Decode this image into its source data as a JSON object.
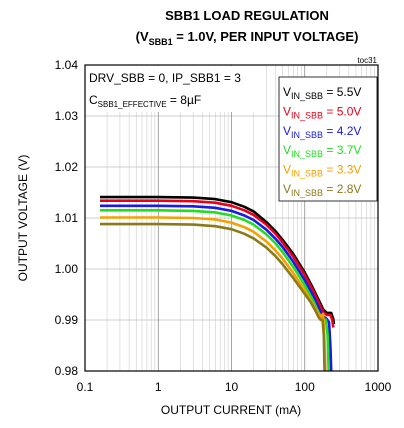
{
  "chart_data": {
    "type": "line",
    "title_main": "SBB1 LOAD REGULATION",
    "title_sub_v": "V",
    "title_sub_sub": "SBB1",
    "title_sub_rest": " = 1.0V, PER INPUT VOLTAGE)",
    "tag": "toc31",
    "xlabel": "OUTPUT CURRENT (mA)",
    "ylabel": "OUTPUT VOLTAGE (V)",
    "x_scale": "log",
    "xlim": [
      0.1,
      1000
    ],
    "ylim": [
      0.98,
      1.04
    ],
    "x_ticks": [
      "0.1",
      "1",
      "10",
      "100",
      "1000"
    ],
    "y_ticks": [
      "0.98",
      "0.99",
      "1.00",
      "1.01",
      "1.02",
      "1.03",
      "1.04"
    ],
    "grid": true,
    "annotations": {
      "line1": "DRV_SBB = 0, IP_SBB1 = 3",
      "line2_c": "C",
      "line2_sub": "SBB1_EFFECTIVE",
      "line2_rest": " = 8µF"
    },
    "series": [
      {
        "name": "5.5V",
        "legend_v": "V",
        "legend_sub": "IN_SBB",
        "legend_rest": " = 5.5V",
        "color": "#000000",
        "points": [
          [
            0.16,
            1.0141
          ],
          [
            0.3,
            1.0141
          ],
          [
            1,
            1.0141
          ],
          [
            3,
            1.014
          ],
          [
            6,
            1.0137
          ],
          [
            10,
            1.0131
          ],
          [
            15,
            1.0122
          ],
          [
            20,
            1.0113
          ],
          [
            30,
            1.0092
          ],
          [
            40,
            1.0074
          ],
          [
            50,
            1.0057
          ],
          [
            70,
            1.0029
          ],
          [
            100,
            0.9993
          ],
          [
            130,
            0.9962
          ],
          [
            160,
            0.9935
          ],
          [
            180,
            0.992
          ],
          [
            200,
            0.9914
          ],
          [
            230,
            0.9914
          ],
          [
            245,
            0.9902
          ],
          [
            250,
            0.9892
          ]
        ]
      },
      {
        "name": "5.0V",
        "legend_v": "V",
        "legend_sub": "IN_SBB",
        "legend_rest": " = 5.0V",
        "color": "#e8001a",
        "points": [
          [
            0.16,
            1.0134
          ],
          [
            0.3,
            1.0134
          ],
          [
            1,
            1.0134
          ],
          [
            3,
            1.0133
          ],
          [
            6,
            1.013
          ],
          [
            10,
            1.0124
          ],
          [
            15,
            1.0115
          ],
          [
            20,
            1.0106
          ],
          [
            30,
            1.0087
          ],
          [
            40,
            1.0069
          ],
          [
            50,
            1.0052
          ],
          [
            70,
            1.0024
          ],
          [
            100,
            0.9988
          ],
          [
            130,
            0.9958
          ],
          [
            160,
            0.993
          ],
          [
            180,
            0.9915
          ],
          [
            200,
            0.991
          ],
          [
            225,
            0.991
          ],
          [
            238,
            0.99
          ],
          [
            245,
            0.9885
          ]
        ]
      },
      {
        "name": "4.2V",
        "legend_v": "V",
        "legend_sub": "IN_SBB",
        "legend_rest": " = 4.2V",
        "color": "#1a1ae8",
        "points": [
          [
            0.16,
            1.0124
          ],
          [
            0.3,
            1.0124
          ],
          [
            1,
            1.0124
          ],
          [
            3,
            1.0123
          ],
          [
            6,
            1.012
          ],
          [
            10,
            1.0114
          ],
          [
            15,
            1.0105
          ],
          [
            20,
            1.0096
          ],
          [
            30,
            1.0077
          ],
          [
            40,
            1.0059
          ],
          [
            50,
            1.0043
          ],
          [
            70,
            1.0014
          ],
          [
            100,
            0.9978
          ],
          [
            130,
            0.9948
          ],
          [
            160,
            0.992
          ],
          [
            180,
            0.9907
          ],
          [
            200,
            0.9902
          ],
          [
            215,
            0.9895
          ],
          [
            225,
            0.9845
          ],
          [
            230,
            0.98
          ]
        ]
      },
      {
        "name": "3.7V",
        "legend_v": "V",
        "legend_sub": "IN_SBB",
        "legend_rest": " = 3.7V",
        "color": "#22dd22",
        "points": [
          [
            0.16,
            1.0115
          ],
          [
            0.3,
            1.0115
          ],
          [
            1,
            1.0115
          ],
          [
            3,
            1.0114
          ],
          [
            6,
            1.0111
          ],
          [
            10,
            1.0105
          ],
          [
            15,
            1.0096
          ],
          [
            20,
            1.0087
          ],
          [
            30,
            1.0068
          ],
          [
            40,
            1.005
          ],
          [
            50,
            1.0033
          ],
          [
            70,
            1.0004
          ],
          [
            100,
            0.9968
          ],
          [
            130,
            0.9938
          ],
          [
            160,
            0.991
          ],
          [
            180,
            0.9902
          ],
          [
            195,
            0.99
          ],
          [
            205,
            0.987
          ],
          [
            212,
            0.98
          ]
        ]
      },
      {
        "name": "3.3V",
        "legend_v": "V",
        "legend_sub": "IN_SBB",
        "legend_rest": " = 3.3V",
        "color": "#f5a000",
        "points": [
          [
            0.16,
            1.0101
          ],
          [
            0.3,
            1.0101
          ],
          [
            1,
            1.0101
          ],
          [
            3,
            1.01
          ],
          [
            6,
            1.0097
          ],
          [
            10,
            1.0091
          ],
          [
            15,
            1.0082
          ],
          [
            20,
            1.0073
          ],
          [
            30,
            1.0054
          ],
          [
            40,
            1.0036
          ],
          [
            50,
            1.002
          ],
          [
            70,
            0.9992
          ],
          [
            100,
            0.9958
          ],
          [
            130,
            0.993
          ],
          [
            150,
            0.9915
          ],
          [
            165,
            0.9907
          ],
          [
            178,
            0.9912
          ],
          [
            185,
            0.987
          ],
          [
            190,
            0.98
          ]
        ]
      },
      {
        "name": "2.8V",
        "legend_v": "V",
        "legend_sub": "IN_SBB",
        "legend_rest": " = 2.8V",
        "color": "#8c7a1a",
        "points": [
          [
            0.16,
            1.0088
          ],
          [
            0.3,
            1.0088
          ],
          [
            1,
            1.0088
          ],
          [
            3,
            1.0087
          ],
          [
            6,
            1.0084
          ],
          [
            10,
            1.0078
          ],
          [
            15,
            1.0069
          ],
          [
            20,
            1.006
          ],
          [
            30,
            1.0042
          ],
          [
            40,
            1.0025
          ],
          [
            50,
            1.0009
          ],
          [
            70,
            0.9982
          ],
          [
            100,
            0.9951
          ],
          [
            120,
            0.9935
          ],
          [
            140,
            0.9918
          ],
          [
            155,
            0.9905
          ],
          [
            165,
            0.99
          ],
          [
            175,
            0.99
          ],
          [
            182,
            0.987
          ],
          [
            186,
            0.98
          ]
        ]
      }
    ]
  }
}
